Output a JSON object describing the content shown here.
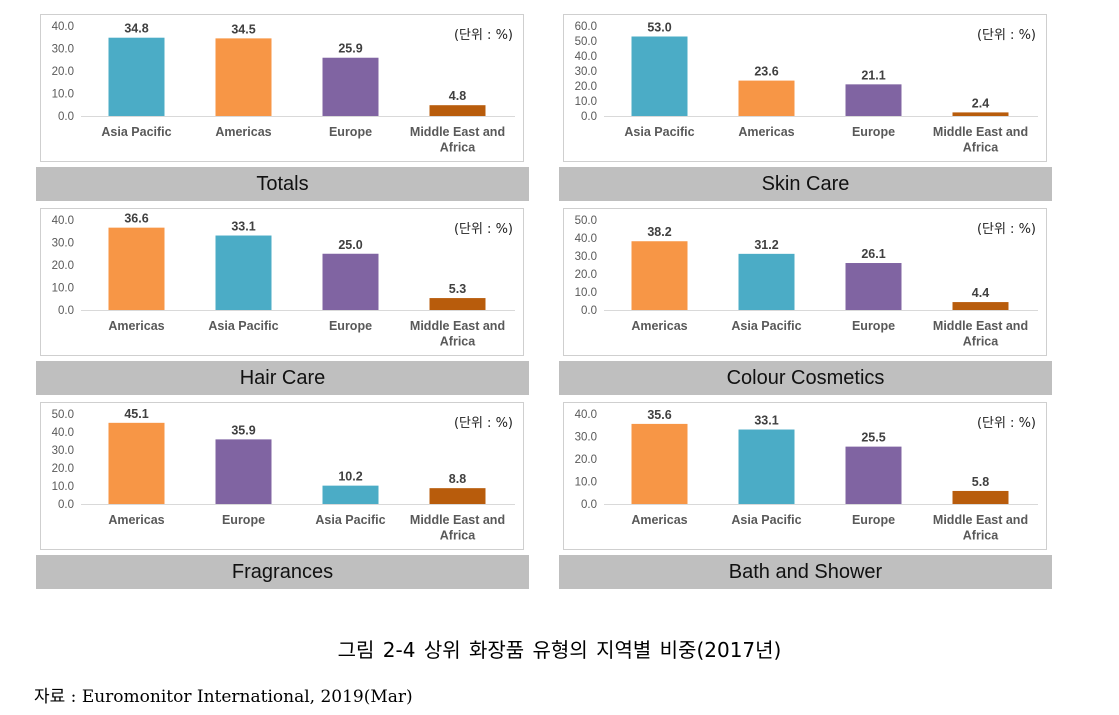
{
  "unit_label": "(단위 : %)",
  "caption": "그림 2-4  상위 화장품 유형의 지역별 비중(2017년)",
  "source": "자료 : Euromonitor International, 2019(Mar)",
  "colors": {
    "asia_pacific": "#4bacc6",
    "americas": "#f79646",
    "europe": "#8064a2",
    "mea": "#b85c0c"
  },
  "chart_data": [
    {
      "type": "bar",
      "title": "Totals",
      "categories": [
        "Asia Pacific",
        "Americas",
        "Europe",
        "Middle East and Africa"
      ],
      "values": [
        34.8,
        34.5,
        25.9,
        4.8
      ],
      "yticks": [
        "0.0",
        "10.0",
        "20.0",
        "30.0",
        "40.0"
      ],
      "ylim": [
        0,
        40
      ]
    },
    {
      "type": "bar",
      "title": "Skin Care",
      "categories": [
        "Asia Pacific",
        "Americas",
        "Europe",
        "Middle East and Africa"
      ],
      "values": [
        53.0,
        23.6,
        21.1,
        2.4
      ],
      "yticks": [
        "0.0",
        "10.0",
        "20.0",
        "30.0",
        "40.0",
        "50.0",
        "60.0"
      ],
      "ylim": [
        0,
        60
      ]
    },
    {
      "type": "bar",
      "title": "Hair  Care",
      "categories": [
        "Americas",
        "Asia Pacific",
        "Europe",
        "Middle East and Africa"
      ],
      "values": [
        36.6,
        33.1,
        25.0,
        5.3
      ],
      "yticks": [
        "0.0",
        "10.0",
        "20.0",
        "30.0",
        "40.0"
      ],
      "ylim": [
        0,
        40
      ]
    },
    {
      "type": "bar",
      "title": "Colour  Cosmetics",
      "categories": [
        "Americas",
        "Asia Pacific",
        "Europe",
        "Middle East and Africa"
      ],
      "values": [
        38.2,
        31.2,
        26.1,
        4.4
      ],
      "yticks": [
        "0.0",
        "10.0",
        "20.0",
        "30.0",
        "40.0",
        "50.0"
      ],
      "ylim": [
        0,
        50
      ]
    },
    {
      "type": "bar",
      "title": "Fragrances",
      "categories": [
        "Americas",
        "Europe",
        "Asia Pacific",
        "Middle East and Africa"
      ],
      "values": [
        45.1,
        35.9,
        10.2,
        8.8
      ],
      "yticks": [
        "0.0",
        "10.0",
        "20.0",
        "30.0",
        "40.0",
        "50.0"
      ],
      "ylim": [
        0,
        50
      ]
    },
    {
      "type": "bar",
      "title": "Bath  and  Shower",
      "categories": [
        "Americas",
        "Asia Pacific",
        "Europe",
        "Middle East and Africa"
      ],
      "values": [
        35.6,
        33.1,
        25.5,
        5.8
      ],
      "yticks": [
        "0.0",
        "10.0",
        "20.0",
        "30.0",
        "40.0"
      ],
      "ylim": [
        0,
        40
      ]
    }
  ]
}
